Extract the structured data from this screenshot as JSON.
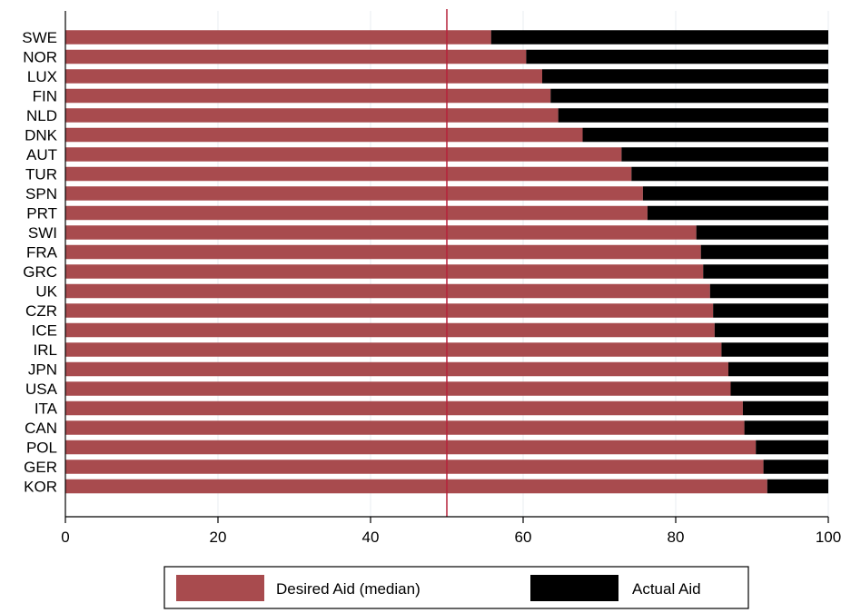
{
  "chart_data": {
    "type": "bar",
    "orientation": "horizontal",
    "stacked": true,
    "categories": [
      "SWE",
      "NOR",
      "LUX",
      "FIN",
      "NLD",
      "DNK",
      "AUT",
      "TUR",
      "SPN",
      "PRT",
      "SWI",
      "FRA",
      "GRC",
      "UK",
      "CZR",
      "ICE",
      "IRL",
      "JPN",
      "USA",
      "ITA",
      "CAN",
      "POL",
      "GER",
      "KOR"
    ],
    "series": [
      {
        "name": "Desired Aid (median)",
        "color": "#a84b4e",
        "values": [
          55.8,
          60.4,
          62.5,
          63.6,
          64.6,
          67.8,
          72.9,
          74.2,
          75.7,
          76.3,
          82.7,
          83.3,
          83.6,
          84.5,
          84.9,
          85.1,
          86.0,
          86.9,
          87.2,
          88.8,
          89.0,
          90.5,
          91.5,
          92.0
        ]
      },
      {
        "name": "Actual Aid",
        "color": "#000000",
        "values": [
          44.2,
          39.6,
          37.5,
          36.4,
          35.4,
          32.2,
          27.1,
          25.8,
          24.3,
          23.7,
          17.3,
          16.7,
          16.4,
          15.5,
          15.1,
          14.9,
          14.0,
          13.1,
          12.8,
          11.2,
          11.0,
          9.5,
          8.5,
          8.0
        ]
      }
    ],
    "xlim": [
      0,
      100
    ],
    "xticks": [
      0,
      20,
      40,
      60,
      80,
      100
    ],
    "reference_line": {
      "x": 50,
      "color": "#b5223a"
    },
    "grid": true,
    "legend_position": "bottom",
    "title": "",
    "xlabel": "",
    "ylabel": ""
  }
}
